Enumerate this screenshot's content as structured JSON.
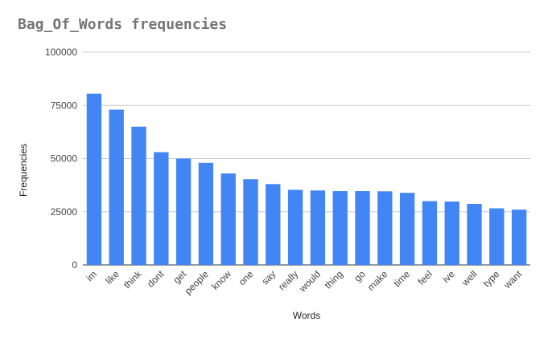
{
  "chart_data": {
    "type": "bar",
    "title": "Bag_Of_Words frequencies",
    "xlabel": "Words",
    "ylabel": "Frequencies",
    "ylim": [
      0,
      100000
    ],
    "yticks": [
      0,
      25000,
      50000,
      75000,
      100000
    ],
    "ytick_labels": [
      "0",
      "25000",
      "50000",
      "75000",
      "100000"
    ],
    "grid": true,
    "bar_color": "#4285f4",
    "categories": [
      "im",
      "like",
      "think",
      "dont",
      "get",
      "people",
      "know",
      "one",
      "say",
      "really",
      "would",
      "thing",
      "go",
      "make",
      "time",
      "feel",
      "ive",
      "well",
      "type",
      "want"
    ],
    "values": [
      80500,
      73000,
      65000,
      53000,
      50000,
      48000,
      43000,
      40300,
      38000,
      35300,
      35000,
      34700,
      34700,
      34600,
      33900,
      30000,
      29800,
      28700,
      26600,
      26000
    ]
  }
}
